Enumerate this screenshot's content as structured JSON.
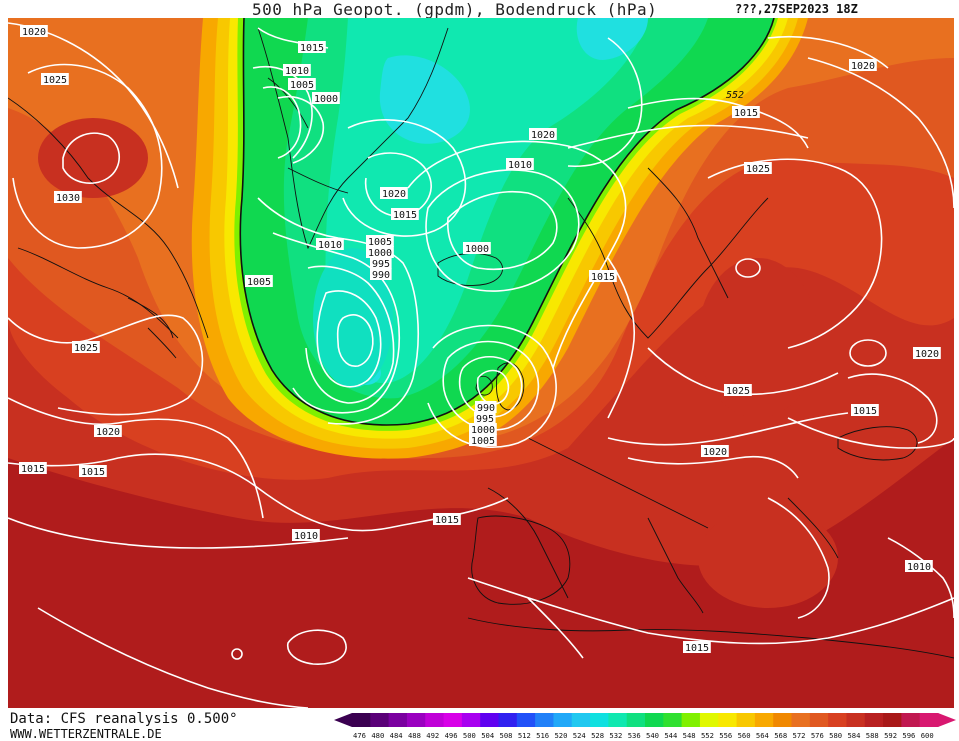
{
  "title": "500 hPa Geopot. (gpdm), Bodendruck (hPa)",
  "timestamp": "???,27SEP2023 18Z",
  "footer": {
    "data_source": "Data: CFS reanalysis 0.500°",
    "website": "WWW.WETTERZENTRALE.DE"
  },
  "legend": {
    "values": [
      "476",
      "480",
      "484",
      "488",
      "492",
      "496",
      "500",
      "504",
      "508",
      "512",
      "516",
      "520",
      "524",
      "528",
      "532",
      "536",
      "540",
      "544",
      "548",
      "552",
      "556",
      "560",
      "564",
      "568",
      "572",
      "576",
      "580",
      "584",
      "588",
      "592",
      "596",
      "600"
    ],
    "colors": [
      "#3a0050",
      "#5a0078",
      "#7a00a0",
      "#9a00c0",
      "#c000d8",
      "#d800e8",
      "#a800f0",
      "#6000f0",
      "#3020f0",
      "#2050f8",
      "#2080f8",
      "#20a8f8",
      "#20c8f0",
      "#10e0e0",
      "#10e8b0",
      "#10e080",
      "#10d850",
      "#30e030",
      "#80f000",
      "#e0f800",
      "#f8e800",
      "#f8c800",
      "#f8a800",
      "#f08800",
      "#e87020",
      "#e05820",
      "#d84020",
      "#c83020",
      "#b82020",
      "#a81818",
      "#c01850",
      "#d81870"
    ]
  },
  "colors": {
    "trough_green": "#10d850",
    "trough_teal": "#10e8b0",
    "trough_cyan": "#20e8e0",
    "ridge_yellow": "#f8e800",
    "ridge_orange": "#f08800",
    "ridge_red": "#c83020",
    "ridge_darkred": "#b01c1c",
    "isobar": "#ffffff"
  },
  "contour_label_552": "552",
  "isobar_labels": [
    {
      "id": "iso-nw-1020",
      "text": "1020"
    },
    {
      "id": "iso-nw-1025",
      "text": "1025"
    },
    {
      "id": "iso-nw-1030",
      "text": "1030"
    },
    {
      "id": "iso-w-1025",
      "text": "1025"
    },
    {
      "id": "iso-w-1020",
      "text": "1020"
    },
    {
      "id": "iso-w-1015a",
      "text": "1015"
    },
    {
      "id": "iso-w-1015b",
      "text": "1015"
    },
    {
      "id": "iso-s-1010",
      "text": "1010"
    },
    {
      "id": "iso-s-1015",
      "text": "1015"
    },
    {
      "id": "iso-gl-1015",
      "text": "1015"
    },
    {
      "id": "iso-gl-1010",
      "text": "1010"
    },
    {
      "id": "iso-gl-1005",
      "text": "1005"
    },
    {
      "id": "iso-gl-1000",
      "text": "1000"
    },
    {
      "id": "iso-gl-1020",
      "text": "1020"
    },
    {
      "id": "iso-gl-1015b",
      "text": "1015"
    },
    {
      "id": "iso-c-1010",
      "text": "1010"
    },
    {
      "id": "iso-c-1005",
      "text": "1005"
    },
    {
      "id": "iso-c-1000",
      "text": "1000"
    },
    {
      "id": "iso-c-995",
      "text": "995"
    },
    {
      "id": "iso-c-990",
      "text": "990"
    },
    {
      "id": "iso-l-1005",
      "text": "1005"
    },
    {
      "id": "iso-e-1000",
      "text": "1000"
    },
    {
      "id": "iso-e-1010",
      "text": "1010"
    },
    {
      "id": "iso-n-1020",
      "text": "1020"
    },
    {
      "id": "iso-n-1015",
      "text": "1015"
    },
    {
      "id": "iso-n-1025",
      "text": "1025"
    },
    {
      "id": "iso-ne-1020",
      "text": "1020"
    },
    {
      "id": "iso-sc-1015",
      "text": "1015"
    },
    {
      "id": "iso-uk-990",
      "text": "990"
    },
    {
      "id": "iso-uk-995",
      "text": "995"
    },
    {
      "id": "iso-uk-1000",
      "text": "1000"
    },
    {
      "id": "iso-uk-1005",
      "text": "1005"
    },
    {
      "id": "iso-eu-1025",
      "text": "1025"
    },
    {
      "id": "iso-eu-1020",
      "text": "1020"
    },
    {
      "id": "iso-eu-1015",
      "text": "1015"
    },
    {
      "id": "iso-eu-1020b",
      "text": "1020"
    },
    {
      "id": "iso-se-1010",
      "text": "1010"
    },
    {
      "id": "iso-med-1015",
      "text": "1015"
    }
  ]
}
